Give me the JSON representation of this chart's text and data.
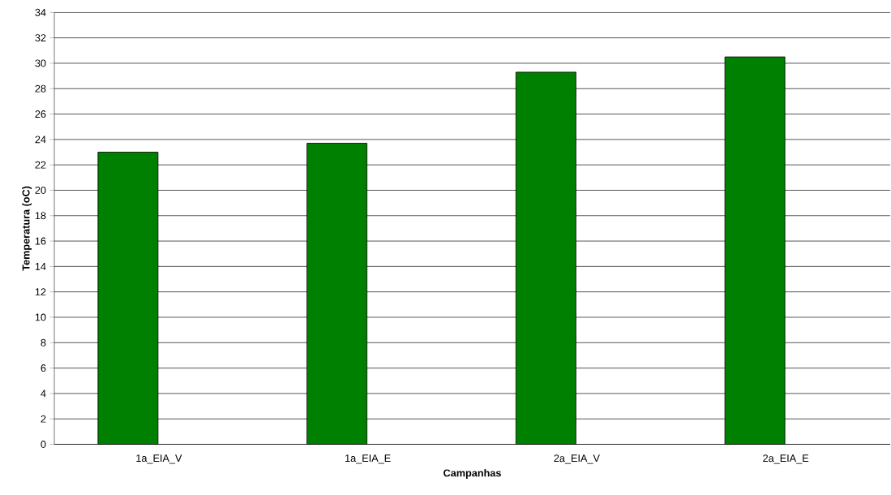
{
  "chart_data": {
    "type": "bar",
    "xlabel": "Campanhas",
    "ylabel": "Temperatura (oC)",
    "categories": [
      "1a_EIA_V",
      "1a_EIA_E",
      "2a_EIA_V",
      "2a_EIA_E"
    ],
    "values": [
      23.0,
      23.7,
      29.3,
      30.5
    ],
    "color": "#008000",
    "ylim": [
      0,
      34
    ],
    "yticks": [
      0,
      2,
      4,
      6,
      8,
      10,
      12,
      14,
      16,
      18,
      20,
      22,
      24,
      26,
      28,
      30,
      32,
      34
    ],
    "grid": "y"
  }
}
